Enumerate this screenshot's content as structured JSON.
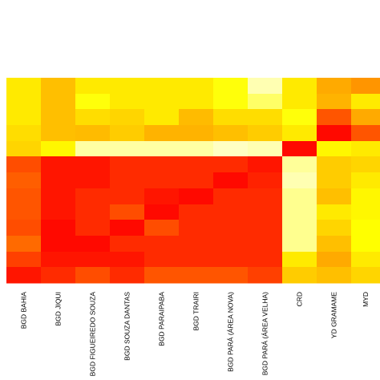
{
  "chart_data": {
    "type": "heatmap",
    "title": "",
    "xlabel": "",
    "ylabel": "",
    "columns": [
      "BGD BAHIA",
      "BGD JIQUI",
      "BGD FIGUEIREDO SOUZA",
      "BGD SOUZA DANTAS",
      "BGD PARAIPABA",
      "BGD TRAIRI",
      "BGD PARÁ (ÁREA NOVA)",
      "BGD PARÁ (ÁREA VELHA)",
      "CRD",
      "YD GRAMAME",
      "MYD"
    ],
    "column_groups": [
      1,
      1,
      1,
      1,
      1,
      1,
      1,
      1,
      1,
      1,
      1
    ],
    "row_count": 13,
    "color_scale": {
      "name": "heat",
      "low_color": "#ff0000",
      "high_color": "#ffffcc",
      "value_range": [
        0,
        1
      ]
    },
    "values": [
      [
        0.55,
        0.45,
        0.55,
        0.55,
        0.55,
        0.55,
        0.62,
        0.95,
        0.55,
        0.4,
        0.35
      ],
      [
        0.55,
        0.45,
        0.62,
        0.55,
        0.55,
        0.55,
        0.62,
        0.8,
        0.55,
        0.42,
        0.55
      ],
      [
        0.55,
        0.45,
        0.52,
        0.5,
        0.55,
        0.44,
        0.52,
        0.52,
        0.62,
        0.2,
        0.4
      ],
      [
        0.52,
        0.45,
        0.44,
        0.48,
        0.42,
        0.42,
        0.45,
        0.48,
        0.55,
        0.02,
        0.2
      ],
      [
        0.5,
        0.58,
        0.92,
        0.92,
        0.92,
        0.92,
        0.98,
        0.95,
        0.02,
        0.58,
        0.55
      ],
      [
        0.18,
        0.05,
        0.05,
        0.1,
        0.1,
        0.1,
        0.1,
        0.05,
        0.9,
        0.48,
        0.5
      ],
      [
        0.22,
        0.05,
        0.05,
        0.1,
        0.1,
        0.1,
        0.02,
        0.08,
        0.95,
        0.48,
        0.55
      ],
      [
        0.2,
        0.05,
        0.1,
        0.1,
        0.05,
        0.02,
        0.1,
        0.1,
        0.88,
        0.45,
        0.58
      ],
      [
        0.2,
        0.05,
        0.1,
        0.18,
        0.02,
        0.1,
        0.1,
        0.1,
        0.88,
        0.55,
        0.58
      ],
      [
        0.18,
        0.02,
        0.1,
        0.02,
        0.18,
        0.1,
        0.1,
        0.1,
        0.88,
        0.5,
        0.6
      ],
      [
        0.25,
        0.02,
        0.02,
        0.1,
        0.1,
        0.1,
        0.1,
        0.1,
        0.88,
        0.45,
        0.6
      ],
      [
        0.15,
        0.05,
        0.05,
        0.05,
        0.1,
        0.1,
        0.1,
        0.1,
        0.55,
        0.4,
        0.55
      ],
      [
        0.05,
        0.1,
        0.18,
        0.1,
        0.2,
        0.2,
        0.2,
        0.15,
        0.48,
        0.45,
        0.5
      ]
    ]
  }
}
